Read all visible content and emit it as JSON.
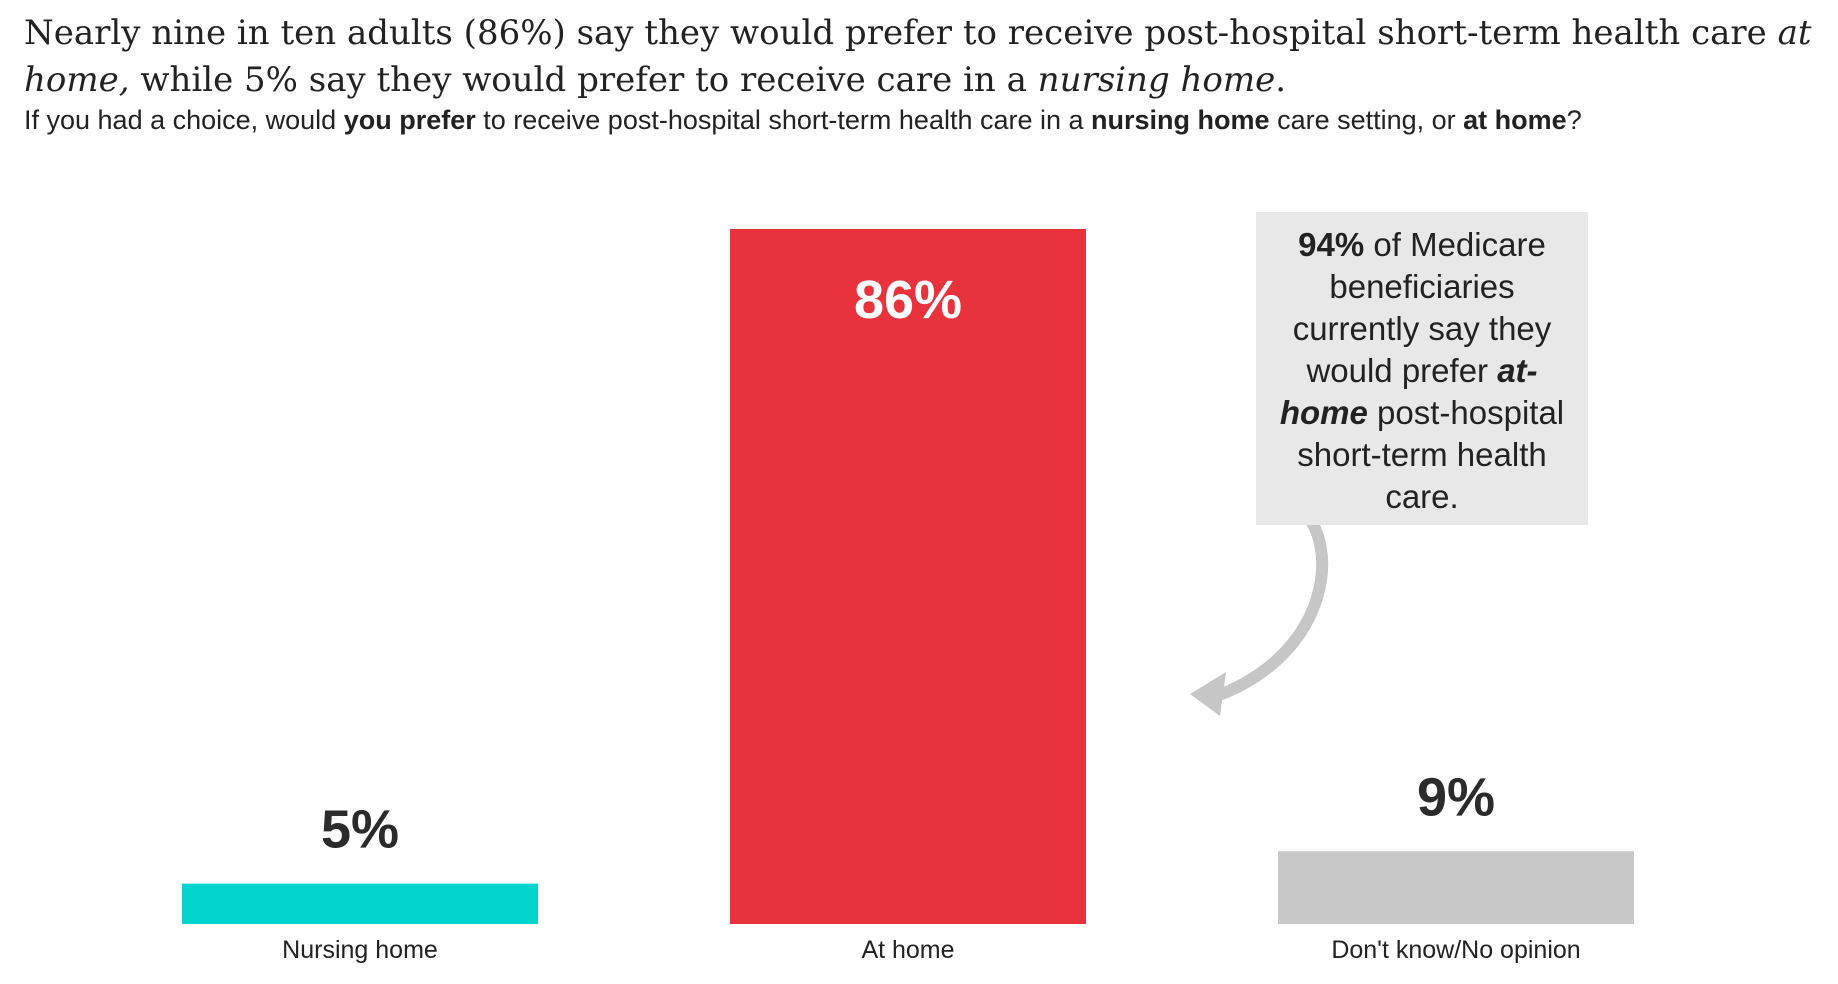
{
  "title": {
    "part1": "Nearly nine in ten adults (86%) say they would prefer to receive post-hospital short-term health care ",
    "em1": "at home,",
    "part2": " while 5% say they would prefer to receive care in a ",
    "em2": "nursing home",
    "part3": "."
  },
  "subtitle": {
    "part1": "If you had a choice, would ",
    "bold1": "you prefer",
    "part2": " to receive post-hospital short-term health care in a ",
    "bold2": "nursing home",
    "part3": " care setting, or ",
    "bold3": "at home",
    "part4": "?"
  },
  "callout": {
    "bold": "94%",
    "text1": " of Medicare beneficiaries currently say they would prefer ",
    "emph": "at-home",
    "text2": " post-hospital short-term health care."
  },
  "chart_data": {
    "type": "bar",
    "title": "Nearly nine in ten adults (86%) say they would prefer to receive post-hospital short-term health care at home, while 5% say they would prefer to receive care in a nursing home.",
    "subtitle": "If you had a choice, would you prefer to receive post-hospital short-term health care in a nursing home care setting, or at home?",
    "categories": [
      "Nursing home",
      "At home",
      "Don't know/No opinion"
    ],
    "values": [
      5,
      86,
      9
    ],
    "value_labels": [
      "5%",
      "86%",
      "9%"
    ],
    "colors": [
      "#00d4cc",
      "#e8333c",
      "#c8c8c8"
    ],
    "value_label_colors": [
      "#2b2b2b",
      "#ffffff",
      "#2b2b2b"
    ],
    "ylim": [
      0,
      86
    ],
    "xlabel": "",
    "ylabel": "",
    "grid": false,
    "annotation": "94% of Medicare beneficiaries currently say they would prefer at-home post-hospital short-term health care."
  }
}
